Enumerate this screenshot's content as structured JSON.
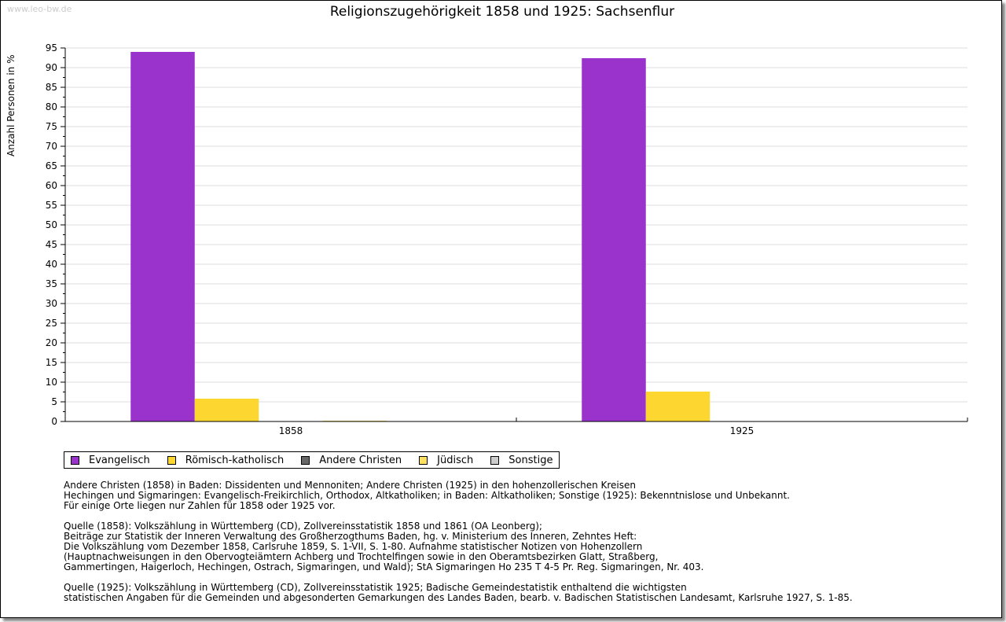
{
  "watermark": "www.leo-bw.de",
  "chart_data": {
    "type": "bar",
    "title": "Religionszugehörigkeit 1858 und 1925: Sachsenflur",
    "ylabel": "Anzahl Personen in %",
    "xlabel": "",
    "ylim": [
      0,
      95
    ],
    "yticks": [
      0,
      5,
      10,
      15,
      20,
      25,
      30,
      35,
      40,
      45,
      50,
      55,
      60,
      65,
      70,
      75,
      80,
      85,
      90,
      95
    ],
    "categories": [
      "1858",
      "1925"
    ],
    "series": [
      {
        "name": "Evangelisch",
        "color": "#9933cc",
        "values": [
          94.0,
          92.4
        ]
      },
      {
        "name": "Römisch-katholisch",
        "color": "#fdd630",
        "values": [
          5.8,
          7.6
        ]
      },
      {
        "name": "Andere Christen",
        "color": "#666666",
        "values": [
          0,
          0
        ]
      },
      {
        "name": "Jüdisch",
        "color": "#fde060",
        "values": [
          0.2,
          0
        ]
      },
      {
        "name": "Sonstige",
        "color": "#cccccc",
        "values": [
          0,
          0
        ]
      }
    ],
    "legend": "bottom-left",
    "grid": true
  },
  "notes": [
    "Andere Christen (1858) in Baden: Dissidenten und Mennoniten; Andere Christen (1925) in den hohenzollerischen Kreisen\nHechingen und Sigmaringen: Evangelisch-Freikirchlich, Orthodox, Altkatholiken; in Baden: Altkatholiken; Sonstige (1925): Bekenntnislose und Unbekannt.\nFür einige Orte liegen nur Zahlen für 1858 oder 1925 vor.",
    "Quelle (1858): Volkszählung in Württemberg (CD), Zollvereinsstatistik 1858 und 1861 (OA Leonberg);\nBeiträge zur Statistik der Inneren Verwaltung des Großherzogthums Baden, hg. v. Ministerium des Inneren, Zehntes Heft:\nDie Volkszählung vom Dezember 1858, Carlsruhe 1859, S. 1-VII, S. 1-80. Aufnahme statistischer Notizen von Hohenzollern\n(Hauptnachweisungen in den Obervogteiämtern Achberg und Trochtelfingen sowie in den Oberamtsbezirken Glatt, Straßberg,\nGammertingen, Haigerloch, Hechingen, Ostrach, Sigmaringen, und Wald); StA Sigmaringen Ho 235 T 4-5 Pr. Reg. Sigmaringen, Nr. 403.",
    "Quelle (1925): Volkszählung in Württemberg (CD), Zollvereinsstatistik 1925; Badische Gemeindestatistik enthaltend die wichtigsten\nstatistischen Angaben für die Gemeinden und abgesonderten Gemarkungen des Landes Baden, bearb. v. Badischen Statistischen Landesamt, Karlsruhe 1927, S. 1-85."
  ]
}
